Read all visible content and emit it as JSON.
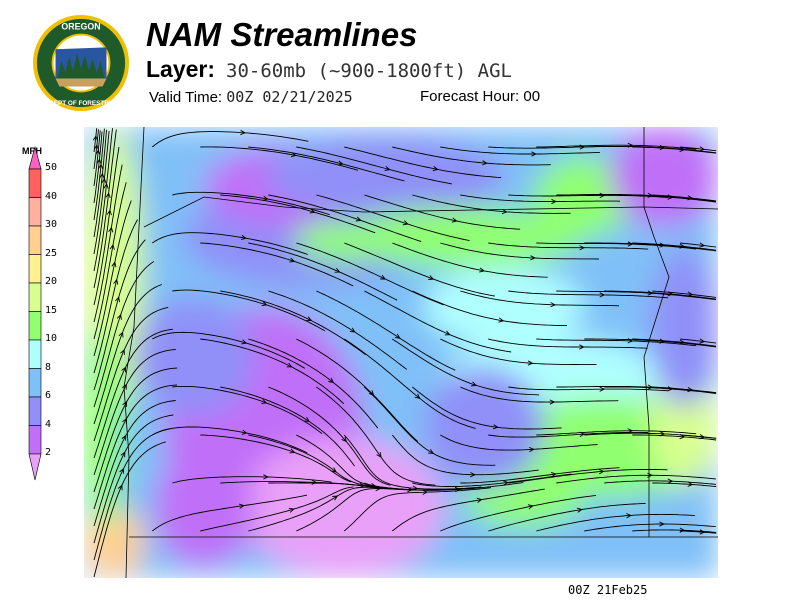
{
  "header": {
    "title": "NAM Streamlines",
    "layer_label": "Layer:",
    "layer_value": "30-60mb (~900-1800ft) AGL",
    "valid_label": "Valid Time:",
    "valid_value": "00Z 02/21/2025",
    "forecast_hour_label": "Forecast Hour:",
    "forecast_hour_value": "00"
  },
  "logo": {
    "text_top": "OREGON",
    "text_bottom": "DEPARTMENT OF FORESTRY",
    "colors": {
      "ring": "#f0c000",
      "field": "#1e5a2a"
    }
  },
  "legend": {
    "unit": "MPH",
    "ticks": [
      "2",
      "4",
      "6",
      "8",
      "10",
      "15",
      "20",
      "25",
      "30",
      "40",
      "50"
    ],
    "bins": [
      {
        "range": "<2",
        "color": "#e8a0f8"
      },
      {
        "range": "2-4",
        "color": "#c070f8"
      },
      {
        "range": "4-6",
        "color": "#9090f8"
      },
      {
        "range": "6-8",
        "color": "#80c0f8"
      },
      {
        "range": "8-10",
        "color": "#b0ffff"
      },
      {
        "range": "10-15",
        "color": "#90ff70"
      },
      {
        "range": "15-20",
        "color": "#d8ff90"
      },
      {
        "range": "20-25",
        "color": "#fff090"
      },
      {
        "range": "25-30",
        "color": "#ffd090"
      },
      {
        "range": "30-40",
        "color": "#ffb0a0"
      },
      {
        "range": "40-50",
        "color": "#ff6060"
      },
      {
        "range": ">50",
        "color": "#ff60c0"
      }
    ]
  },
  "map": {
    "region": "Oregon",
    "field": "wind streamlines",
    "streamline_color": "#000000"
  },
  "footer": {
    "stamp": "00Z 21Feb25"
  }
}
